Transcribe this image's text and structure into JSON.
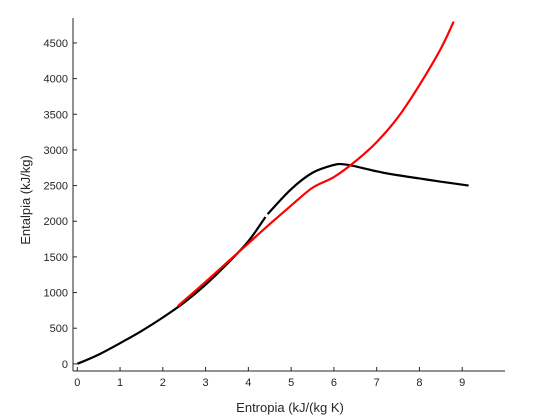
{
  "chart_data": {
    "type": "line",
    "xlabel": "Entropia (kJ/(kg K)",
    "ylabel": "Entalpia (kJ/kg)",
    "xlim": [
      -0.1,
      10.0
    ],
    "ylim": [
      -100,
      4850
    ],
    "xticks": [
      0,
      1,
      2,
      3,
      4,
      5,
      6,
      7,
      8,
      9
    ],
    "yticks": [
      0,
      500,
      1000,
      1500,
      2000,
      2500,
      3000,
      3500,
      4000,
      4500
    ],
    "grid": false,
    "series": [
      {
        "color": "#000000",
        "segments": [
          [
            [
              0.0,
              0
            ],
            [
              0.5,
              130
            ],
            [
              1.0,
              290
            ],
            [
              1.5,
              460
            ],
            [
              2.0,
              650
            ],
            [
              2.5,
              860
            ],
            [
              3.0,
              1110
            ],
            [
              3.5,
              1400
            ],
            [
              4.0,
              1720
            ],
            [
              4.4,
              2060
            ]
          ],
          [
            [
              4.45,
              2100
            ],
            [
              5.0,
              2450
            ],
            [
              5.5,
              2680
            ],
            [
              6.0,
              2790
            ],
            [
              6.2,
              2800
            ],
            [
              6.5,
              2770
            ],
            [
              7.0,
              2700
            ],
            [
              7.5,
              2645
            ],
            [
              8.0,
              2600
            ],
            [
              8.5,
              2555
            ],
            [
              9.15,
              2500
            ]
          ]
        ]
      },
      {
        "color": "#ff0000",
        "segments": [
          [
            [
              2.35,
              810
            ],
            [
              3.0,
              1150
            ],
            [
              3.5,
              1420
            ],
            [
              4.0,
              1690
            ],
            [
              4.5,
              1960
            ],
            [
              5.0,
              2220
            ],
            [
              5.5,
              2470
            ],
            [
              6.0,
              2620
            ],
            [
              6.5,
              2840
            ],
            [
              7.0,
              3110
            ],
            [
              7.5,
              3460
            ],
            [
              8.0,
              3910
            ],
            [
              8.5,
              4420
            ],
            [
              8.8,
              4800
            ]
          ]
        ]
      }
    ]
  }
}
